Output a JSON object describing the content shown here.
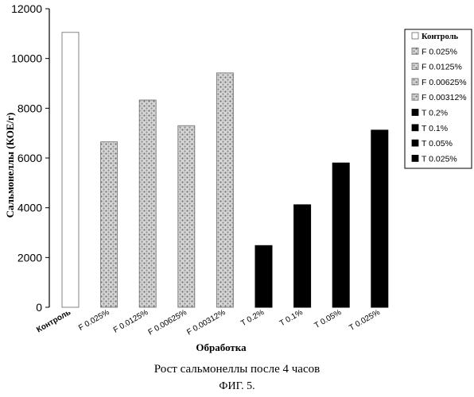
{
  "chart_data": {
    "type": "bar",
    "categories": [
      "Контроль",
      "F 0.025%",
      "F 0.0125%",
      "F 0.00625%",
      "F 0.00312%",
      "T 0.2%",
      "T 0.1%",
      "T 0.05%",
      "T 0.025%"
    ],
    "values": [
      11050,
      6650,
      8330,
      7300,
      9420,
      2480,
      4120,
      5800,
      7120
    ],
    "bar_styles": [
      "white",
      "dotted",
      "dotted",
      "dotted",
      "dotted",
      "black",
      "black",
      "black",
      "black"
    ],
    "xlabel": "Обработка",
    "ylabel": "Сальмонеллы (КОЕ/г)",
    "ylim": [
      0,
      12000
    ],
    "yticks": [
      "0",
      "2000",
      "4000",
      "6000",
      "8000",
      "10000",
      "12000"
    ],
    "ytick_values": [
      0,
      2000,
      4000,
      6000,
      8000,
      10000,
      12000
    ],
    "grid": false,
    "legend_position": "right",
    "legend": [
      {
        "label": "Контроль",
        "style": "white"
      },
      {
        "label": "F 0.025%",
        "style": "dotted"
      },
      {
        "label": "F 0.0125%",
        "style": "dotted"
      },
      {
        "label": "F 0.00625%",
        "style": "dotted"
      },
      {
        "label": "F 0.00312%",
        "style": "dotted"
      },
      {
        "label": "T 0.2%",
        "style": "black"
      },
      {
        "label": "T 0.1%",
        "style": "black"
      },
      {
        "label": "T 0.05%",
        "style": "black"
      },
      {
        "label": "T 0.025%",
        "style": "black"
      }
    ]
  },
  "caption": "Рост сальмонеллы после 4 часов",
  "figure_label": "ФИГ. 5."
}
